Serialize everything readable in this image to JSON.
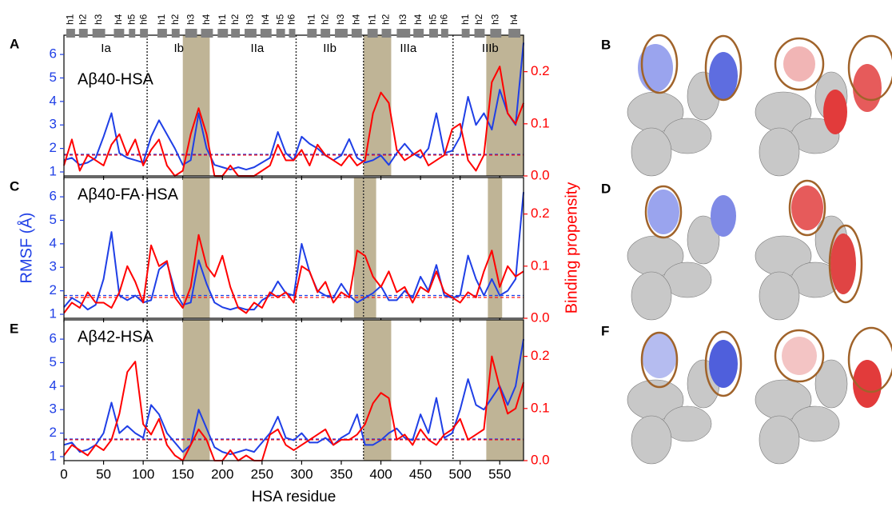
{
  "topology": {
    "helices": [
      {
        "label": "h1",
        "start": 3,
        "end": 14
      },
      {
        "label": "h2",
        "start": 19,
        "end": 30
      },
      {
        "label": "h3",
        "start": 36,
        "end": 52
      },
      {
        "label": "h4",
        "start": 63,
        "end": 76
      },
      {
        "label": "h5",
        "start": 82,
        "end": 90
      },
      {
        "label": "h6",
        "start": 96,
        "end": 106
      },
      {
        "label": "h1",
        "start": 118,
        "end": 130
      },
      {
        "label": "h2",
        "start": 136,
        "end": 146
      },
      {
        "label": "h3",
        "start": 153,
        "end": 168
      },
      {
        "label": "h4",
        "start": 173,
        "end": 188
      },
      {
        "label": "h1",
        "start": 194,
        "end": 207
      },
      {
        "label": "h2",
        "start": 211,
        "end": 222
      },
      {
        "label": "h3",
        "start": 228,
        "end": 243
      },
      {
        "label": "h4",
        "start": 248,
        "end": 262
      },
      {
        "label": "h5",
        "start": 268,
        "end": 279
      },
      {
        "label": "h6",
        "start": 284,
        "end": 292
      },
      {
        "label": "h1",
        "start": 307,
        "end": 319
      },
      {
        "label": "h2",
        "start": 324,
        "end": 336
      },
      {
        "label": "h3",
        "start": 342,
        "end": 358
      },
      {
        "label": "h4",
        "start": 363,
        "end": 376
      },
      {
        "label": "h1",
        "start": 383,
        "end": 396
      },
      {
        "label": "h2",
        "start": 401,
        "end": 413
      },
      {
        "label": "h3",
        "start": 420,
        "end": 437
      },
      {
        "label": "h4",
        "start": 441,
        "end": 454
      },
      {
        "label": "h5",
        "start": 461,
        "end": 472
      },
      {
        "label": "h6",
        "start": 476,
        "end": 485
      },
      {
        "label": "h1",
        "start": 502,
        "end": 512
      },
      {
        "label": "h2",
        "start": 518,
        "end": 531
      },
      {
        "label": "h3",
        "start": 538,
        "end": 552
      },
      {
        "label": "h4",
        "start": 561,
        "end": 576
      }
    ],
    "domains": [
      {
        "label": "Ia",
        "start": 1,
        "end": 105
      },
      {
        "label": "Ib",
        "start": 105,
        "end": 185
      },
      {
        "label": "IIa",
        "start": 195,
        "end": 293
      },
      {
        "label": "IIb",
        "start": 293,
        "end": 378
      },
      {
        "label": "IIIa",
        "start": 378,
        "end": 491
      },
      {
        "label": "IIIb",
        "start": 491,
        "end": 585
      }
    ],
    "dividers": [
      105,
      293,
      378,
      491
    ]
  },
  "structures": [
    {
      "label": "B"
    },
    {
      "label": "D"
    },
    {
      "label": "F"
    }
  ],
  "chart_data": [
    {
      "type": "line",
      "panel": "A",
      "annotation": "Aβ40-HSA",
      "x": [
        0,
        10,
        20,
        30,
        40,
        50,
        60,
        70,
        80,
        90,
        100,
        110,
        120,
        130,
        140,
        150,
        160,
        170,
        180,
        190,
        200,
        210,
        220,
        230,
        240,
        250,
        260,
        270,
        280,
        290,
        300,
        310,
        320,
        330,
        340,
        350,
        360,
        370,
        380,
        390,
        400,
        410,
        420,
        430,
        440,
        450,
        460,
        470,
        480,
        490,
        500,
        510,
        520,
        530,
        540,
        550,
        560,
        570,
        580
      ],
      "series": [
        {
          "color": "#1f3fe6",
          "axis": "y",
          "values": [
            1.5,
            1.6,
            1.3,
            1.4,
            1.6,
            2.5,
            3.5,
            1.8,
            1.6,
            1.5,
            1.4,
            2.5,
            3.2,
            2.6,
            2.0,
            1.3,
            1.5,
            3.5,
            2.0,
            1.3,
            1.2,
            1.1,
            1.2,
            1.1,
            1.2,
            1.4,
            1.6,
            2.7,
            1.8,
            1.5,
            2.5,
            2.2,
            2.0,
            1.7,
            1.5,
            1.7,
            2.4,
            1.6,
            1.4,
            1.5,
            1.7,
            1.3,
            1.8,
            2.2,
            1.8,
            1.6,
            2.0,
            3.5,
            1.8,
            1.9,
            2.5,
            4.2,
            3.0,
            3.5,
            2.8,
            4.5,
            3.5,
            3.0,
            6.5
          ]
        },
        {
          "color": "#ff0000",
          "axis": "y2",
          "values": [
            0.02,
            0.07,
            0.01,
            0.04,
            0.03,
            0.02,
            0.06,
            0.08,
            0.04,
            0.07,
            0.02,
            0.05,
            0.07,
            0.02,
            0.0,
            0.01,
            0.08,
            0.13,
            0.08,
            0.0,
            0.0,
            0.02,
            0.0,
            0.0,
            0.0,
            0.01,
            0.02,
            0.06,
            0.03,
            0.03,
            0.05,
            0.02,
            0.06,
            0.04,
            0.03,
            0.02,
            0.04,
            0.02,
            0.03,
            0.12,
            0.16,
            0.14,
            0.05,
            0.03,
            0.04,
            0.05,
            0.02,
            0.03,
            0.04,
            0.09,
            0.1,
            0.03,
            0.01,
            0.04,
            0.18,
            0.21,
            0.12,
            0.1,
            0.14
          ]
        }
      ],
      "highlights": [
        [
          150,
          184
        ],
        [
          378,
          413
        ],
        [
          533,
          580
        ]
      ],
      "hlines": [
        {
          "value": 1.75,
          "axis": "y",
          "color": "#1f3fe6"
        },
        {
          "value": 0.04,
          "axis": "y2",
          "color": "#ff0000"
        }
      ],
      "xlim": [
        0,
        580
      ],
      "xticks": [
        0,
        50,
        100,
        150,
        200,
        250,
        300,
        350,
        400,
        450,
        500,
        550
      ],
      "ylim": [
        0.83,
        6.82
      ],
      "yticks": [
        1,
        2,
        3,
        4,
        5,
        6
      ],
      "y2lim": [
        0,
        0.27
      ],
      "y2ticks": [
        {
          "value": 0,
          "label": "0.0"
        },
        0.1,
        0.2
      ]
    },
    {
      "type": "line",
      "panel": "C",
      "annotation": "Aβ40-FA·HSA",
      "ylabel": "RMSF (Å)",
      "y2label": "Binding propensity",
      "x": [
        0,
        10,
        20,
        30,
        40,
        50,
        60,
        70,
        80,
        90,
        100,
        110,
        120,
        130,
        140,
        150,
        160,
        170,
        180,
        190,
        200,
        210,
        220,
        230,
        240,
        250,
        260,
        270,
        280,
        290,
        300,
        310,
        320,
        330,
        340,
        350,
        360,
        370,
        380,
        390,
        400,
        410,
        420,
        430,
        440,
        450,
        460,
        470,
        480,
        490,
        500,
        510,
        520,
        530,
        540,
        550,
        560,
        570,
        580
      ],
      "series": [
        {
          "color": "#1f3fe6",
          "axis": "y",
          "values": [
            1.3,
            1.7,
            1.5,
            1.2,
            1.4,
            2.5,
            4.5,
            1.8,
            1.6,
            1.8,
            1.5,
            1.6,
            2.9,
            3.2,
            2.0,
            1.4,
            1.5,
            3.3,
            2.3,
            1.5,
            1.3,
            1.2,
            1.3,
            1.2,
            1.2,
            1.6,
            1.8,
            2.4,
            1.9,
            1.8,
            4.0,
            2.8,
            2.0,
            1.8,
            1.7,
            2.3,
            1.8,
            1.5,
            1.7,
            1.9,
            2.2,
            1.6,
            1.6,
            2.0,
            1.7,
            2.6,
            2.0,
            3.1,
            1.8,
            1.7,
            1.8,
            3.5,
            2.5,
            1.8,
            2.5,
            1.8,
            2.0,
            2.5,
            6.2
          ]
        },
        {
          "color": "#ff0000",
          "axis": "y2",
          "values": [
            0.01,
            0.03,
            0.02,
            0.05,
            0.03,
            0.03,
            0.02,
            0.05,
            0.1,
            0.07,
            0.03,
            0.14,
            0.1,
            0.11,
            0.04,
            0.02,
            0.06,
            0.16,
            0.1,
            0.08,
            0.12,
            0.06,
            0.02,
            0.01,
            0.03,
            0.02,
            0.05,
            0.04,
            0.05,
            0.03,
            0.1,
            0.09,
            0.05,
            0.07,
            0.03,
            0.05,
            0.04,
            0.13,
            0.12,
            0.08,
            0.06,
            0.09,
            0.05,
            0.06,
            0.03,
            0.06,
            0.05,
            0.09,
            0.05,
            0.04,
            0.03,
            0.05,
            0.04,
            0.09,
            0.13,
            0.06,
            0.1,
            0.08,
            0.09
          ]
        }
      ],
      "highlights": [
        [
          150,
          184
        ],
        [
          366,
          394
        ],
        [
          535,
          553
        ]
      ],
      "hlines": [
        {
          "value": 1.8,
          "axis": "y",
          "color": "#1f3fe6"
        },
        {
          "value": 0.04,
          "axis": "y2",
          "color": "#ff0000"
        }
      ],
      "xlim": [
        0,
        580
      ],
      "xticks": [
        0,
        50,
        100,
        150,
        200,
        250,
        300,
        350,
        400,
        450,
        500,
        550
      ],
      "ylim": [
        0.83,
        6.82
      ],
      "yticks": [
        1,
        2,
        3,
        4,
        5,
        6
      ],
      "y2lim": [
        0,
        0.27
      ],
      "y2ticks": [
        {
          "value": 0,
          "label": "0.0"
        },
        0.1,
        0.2
      ]
    },
    {
      "type": "line",
      "panel": "E",
      "annotation": "Aβ42-HSA",
      "xlabel": "HSA residue",
      "x": [
        0,
        10,
        20,
        30,
        40,
        50,
        60,
        70,
        80,
        90,
        100,
        110,
        120,
        130,
        140,
        150,
        160,
        170,
        180,
        190,
        200,
        210,
        220,
        230,
        240,
        250,
        260,
        270,
        280,
        290,
        300,
        310,
        320,
        330,
        340,
        350,
        360,
        370,
        380,
        390,
        400,
        410,
        420,
        430,
        440,
        450,
        460,
        470,
        480,
        490,
        500,
        510,
        520,
        530,
        540,
        550,
        560,
        570,
        580
      ],
      "series": [
        {
          "color": "#1f3fe6",
          "axis": "y",
          "values": [
            1.5,
            1.6,
            1.2,
            1.3,
            1.5,
            2.0,
            3.3,
            2.0,
            2.3,
            2.0,
            1.8,
            3.2,
            2.8,
            2.0,
            1.6,
            1.2,
            1.5,
            3.0,
            2.2,
            1.4,
            1.2,
            1.1,
            1.2,
            1.3,
            1.2,
            1.6,
            2.0,
            2.7,
            1.8,
            1.7,
            2.0,
            1.6,
            1.6,
            1.8,
            1.5,
            1.8,
            2.0,
            2.8,
            1.5,
            1.5,
            1.7,
            2.0,
            2.2,
            1.8,
            1.7,
            2.8,
            2.0,
            3.5,
            1.8,
            2.0,
            3.0,
            4.3,
            3.2,
            3.0,
            3.5,
            4.0,
            3.2,
            4.0,
            6.0
          ]
        },
        {
          "color": "#ff0000",
          "axis": "y2",
          "values": [
            0.01,
            0.03,
            0.02,
            0.01,
            0.03,
            0.02,
            0.04,
            0.09,
            0.17,
            0.19,
            0.07,
            0.05,
            0.08,
            0.03,
            0.01,
            0.0,
            0.03,
            0.06,
            0.04,
            0.0,
            0.0,
            0.02,
            0.0,
            0.01,
            0.0,
            0.0,
            0.05,
            0.06,
            0.03,
            0.02,
            0.03,
            0.04,
            0.05,
            0.06,
            0.03,
            0.04,
            0.04,
            0.05,
            0.07,
            0.11,
            0.13,
            0.12,
            0.04,
            0.05,
            0.03,
            0.06,
            0.04,
            0.03,
            0.05,
            0.06,
            0.08,
            0.04,
            0.05,
            0.06,
            0.2,
            0.14,
            0.09,
            0.1,
            0.15
          ]
        }
      ],
      "highlights": [
        [
          150,
          184
        ],
        [
          378,
          413
        ],
        [
          533,
          580
        ]
      ],
      "hlines": [
        {
          "value": 1.75,
          "axis": "y",
          "color": "#1f3fe6"
        },
        {
          "value": 0.04,
          "axis": "y2",
          "color": "#ff0000"
        }
      ],
      "xlim": [
        0,
        580
      ],
      "xticks": [
        0,
        50,
        100,
        150,
        200,
        250,
        300,
        350,
        400,
        450,
        500,
        550
      ],
      "ylim": [
        0.83,
        6.82
      ],
      "yticks": [
        1,
        2,
        3,
        4,
        5,
        6
      ],
      "y2lim": [
        0,
        0.27
      ],
      "y2ticks": [
        {
          "value": 0,
          "label": "0.0"
        },
        0.1,
        0.2
      ]
    }
  ]
}
